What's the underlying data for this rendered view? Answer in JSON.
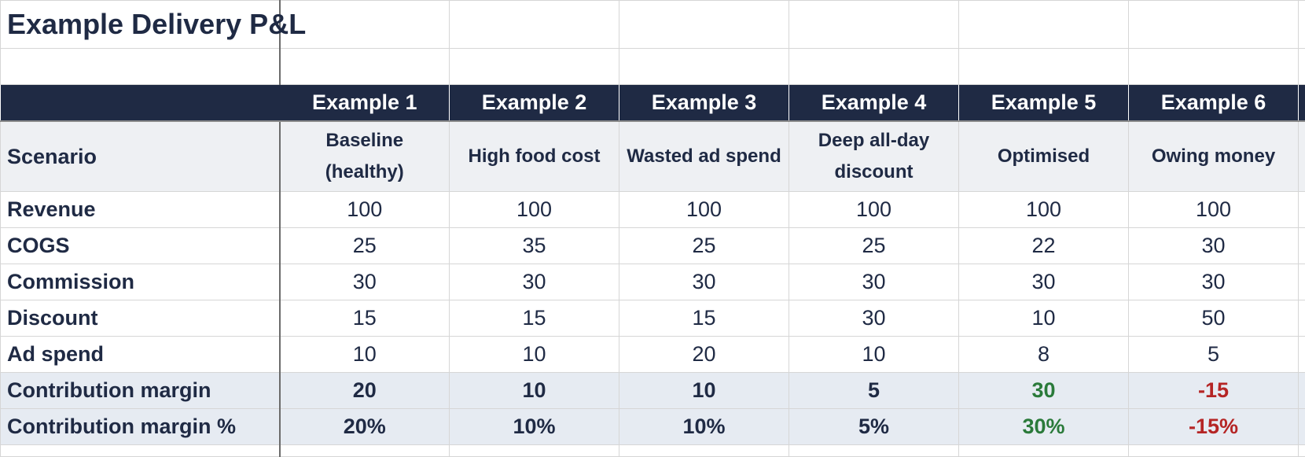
{
  "title": "Example Delivery P&L",
  "columns": [
    "Example 1",
    "Example 2",
    "Example 3",
    "Example 4",
    "Example 5",
    "Example 6"
  ],
  "scenario": {
    "label": "Scenario",
    "values": [
      "Baseline (healthy)",
      "High food cost",
      "Wasted ad spend",
      "Deep all-day discount",
      "Optimised",
      "Owing money"
    ]
  },
  "rows": [
    {
      "label": "Revenue",
      "values": [
        100,
        100,
        100,
        100,
        100,
        100
      ]
    },
    {
      "label": "COGS",
      "values": [
        25,
        35,
        25,
        25,
        22,
        30
      ]
    },
    {
      "label": "Commission",
      "values": [
        30,
        30,
        30,
        30,
        30,
        30
      ]
    },
    {
      "label": "Discount",
      "values": [
        15,
        15,
        15,
        30,
        10,
        50
      ]
    },
    {
      "label": "Ad spend",
      "values": [
        10,
        10,
        20,
        10,
        8,
        5
      ]
    },
    {
      "label": "Contribution margin",
      "values": [
        20,
        10,
        10,
        5,
        30,
        -15
      ]
    },
    {
      "label": "Contribution margin %",
      "values": [
        "20%",
        "10%",
        "10%",
        "5%",
        "30%",
        "-15%"
      ]
    }
  ]
}
